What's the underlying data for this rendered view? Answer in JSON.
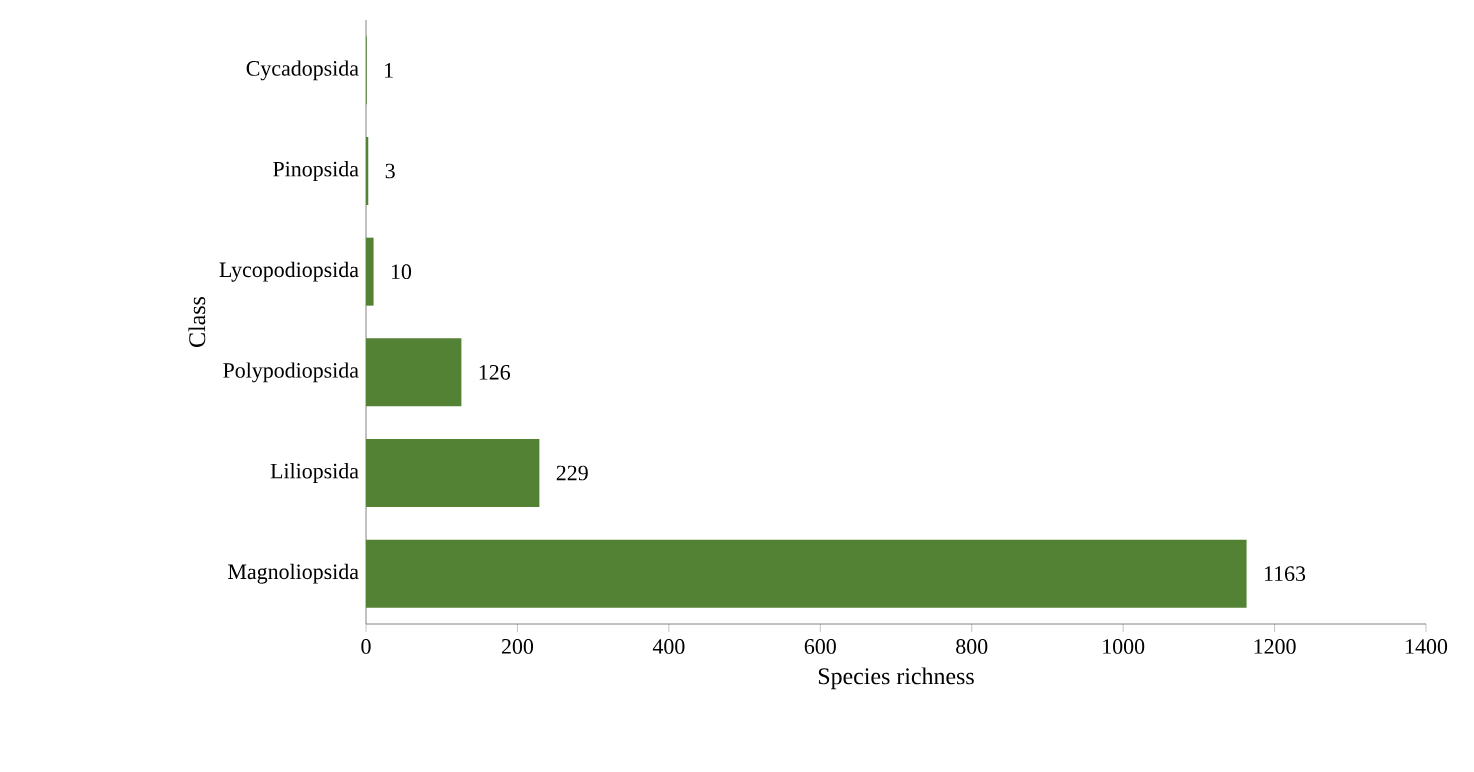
{
  "chart_data": {
    "type": "bar",
    "orientation": "horizontal",
    "xlabel": "Species richness",
    "ylabel": "Class",
    "categories": [
      "Cycadopsida",
      "Pinopsida",
      "Lycopodiopsida",
      "Polypodiopsida",
      "Liliopsida",
      "Magnoliopsida"
    ],
    "values": [
      1,
      3,
      10,
      126,
      229,
      1163
    ],
    "color": "#548235",
    "xlim": [
      0,
      1400
    ],
    "xticks": [
      0,
      200,
      400,
      600,
      800,
      1000,
      1200,
      1400
    ],
    "data_labels": true,
    "grid": false
  }
}
